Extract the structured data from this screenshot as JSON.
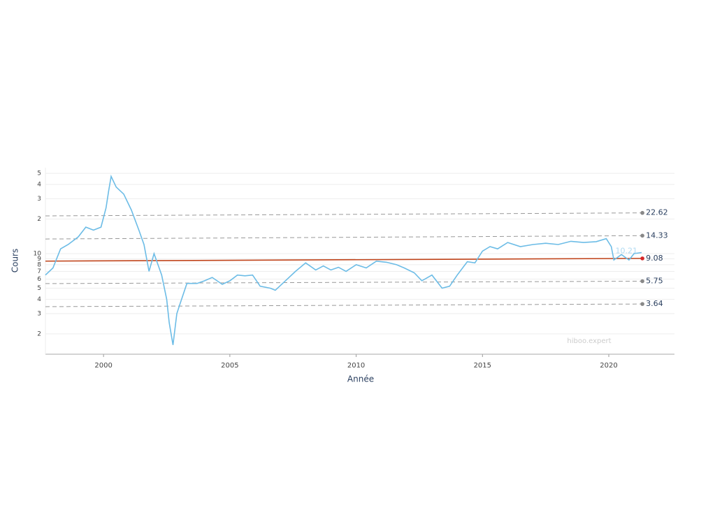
{
  "chart_data": {
    "type": "line",
    "xlabel": "Année",
    "ylabel": "Cours",
    "xlim": [
      1997.7,
      2022.6
    ],
    "xticks": [
      2000,
      2005,
      2010,
      2015,
      2020
    ],
    "ylim": [
      1.33,
      56
    ],
    "log_y": true,
    "grid": true,
    "yticks": [
      2,
      3,
      4,
      5,
      6,
      7,
      8,
      9,
      10,
      {
        "value": 20,
        "label": "2"
      },
      {
        "value": 30,
        "label": "3"
      },
      {
        "value": 40,
        "label": "4"
      },
      {
        "value": 50,
        "label": "5"
      }
    ],
    "series": [
      {
        "color": "#6cbce6",
        "x": [
          1997.7,
          1998.0,
          1998.3,
          1998.6,
          1999.0,
          1999.3,
          1999.6,
          1999.9,
          2000.1,
          2000.2,
          2000.3,
          2000.5,
          2000.8,
          2001.1,
          2001.4,
          2001.6,
          2001.8,
          2002.0,
          2002.3,
          2002.5,
          2002.6,
          2002.75,
          2002.9,
          2003.0,
          2003.3,
          2003.7,
          2004.0,
          2004.3,
          2004.7,
          2005.0,
          2005.3,
          2005.6,
          2005.9,
          2006.2,
          2006.6,
          2006.8,
          2007.2,
          2007.6,
          2008.0,
          2008.4,
          2008.7,
          2009.0,
          2009.3,
          2009.6,
          2010.0,
          2010.4,
          2010.8,
          2011.2,
          2011.6,
          2011.9,
          2012.3,
          2012.6,
          2013.0,
          2013.4,
          2013.7,
          2014.0,
          2014.4,
          2014.7,
          2015.0,
          2015.3,
          2015.6,
          2016.0,
          2016.5,
          2017.0,
          2017.5,
          2018.0,
          2018.5,
          2019.0,
          2019.5,
          2019.9,
          2020.1,
          2020.2,
          2020.5,
          2020.8,
          2021.0,
          2021.3
        ],
        "values": [
          6.5,
          7.5,
          11,
          12,
          14,
          17,
          16,
          17,
          25,
          35,
          47,
          38,
          33,
          24,
          16,
          12,
          7,
          10,
          6.5,
          4,
          2.5,
          1.6,
          3,
          3.5,
          5.5,
          5.5,
          5.8,
          6.2,
          5.4,
          5.8,
          6.5,
          6.4,
          6.5,
          5.2,
          5.0,
          4.8,
          5.8,
          7.0,
          8.3,
          7.2,
          7.8,
          7.2,
          7.6,
          7.0,
          8.0,
          7.5,
          8.6,
          8.4,
          8.0,
          7.5,
          6.8,
          5.8,
          6.5,
          5.0,
          5.2,
          6.5,
          8.5,
          8.3,
          10.5,
          11.5,
          11.0,
          12.5,
          11.5,
          12.0,
          12.3,
          12.0,
          12.8,
          12.5,
          12.7,
          13.5,
          11.5,
          8.8,
          9.8,
          8.8,
          10.0,
          10.21
        ]
      }
    ],
    "annotations": [
      {
        "text": "10.21"
      },
      {
        "text": "hiboo.expert"
      }
    ],
    "channel": {
      "x": [
        1997.7,
        2021.33
      ],
      "lines": [
        {
          "values": [
            21.3,
            22.62
          ],
          "label": "22.62",
          "color": "#999999",
          "dash": true
        },
        {
          "values": [
            13.4,
            14.33
          ],
          "label": "14.33",
          "color": "#999999",
          "dash": true
        },
        {
          "values": [
            8.6,
            9.08
          ],
          "label": "9.08",
          "color": "#c0441b",
          "dash": false
        },
        {
          "values": [
            5.48,
            5.75
          ],
          "label": "5.75",
          "color": "#999999",
          "dash": true
        },
        {
          "values": [
            3.45,
            3.64
          ],
          "label": "3.64",
          "color": "#999999",
          "dash": true
        }
      ]
    }
  }
}
